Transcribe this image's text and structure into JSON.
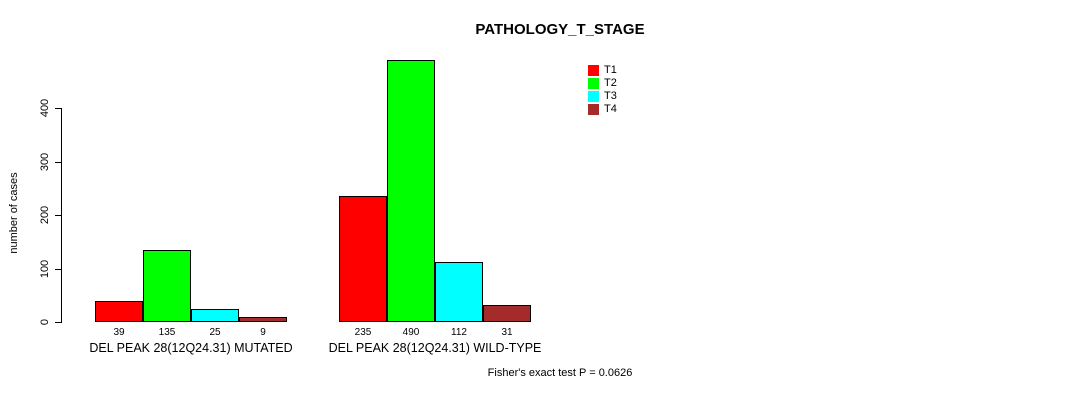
{
  "chart_data": {
    "type": "bar",
    "title": "PATHOLOGY_T_STAGE",
    "xlabel": "",
    "ylabel": "number of cases",
    "ylim": [
      0,
      400
    ],
    "yticks": [
      0,
      100,
      200,
      300,
      400
    ],
    "grid": false,
    "legend_position": "top-right",
    "categories": [
      "DEL PEAK 28(12Q24.31) MUTATED",
      "DEL PEAK 28(12Q24.31) WILD-TYPE"
    ],
    "series": [
      {
        "name": "T1",
        "color": "#FF0000",
        "values": [
          39,
          235
        ]
      },
      {
        "name": "T2",
        "color": "#00FF00",
        "values": [
          135,
          490
        ]
      },
      {
        "name": "T3",
        "color": "#00FFFF",
        "values": [
          25,
          112
        ]
      },
      {
        "name": "T4",
        "color": "#A52A2A",
        "values": [
          9,
          31
        ]
      }
    ],
    "bar_value_labels": true,
    "annotation": "Fisher's exact test P = 0.0626",
    "axis_color": "#000000",
    "text_color": "#000000",
    "background": "#FFFFFF"
  }
}
